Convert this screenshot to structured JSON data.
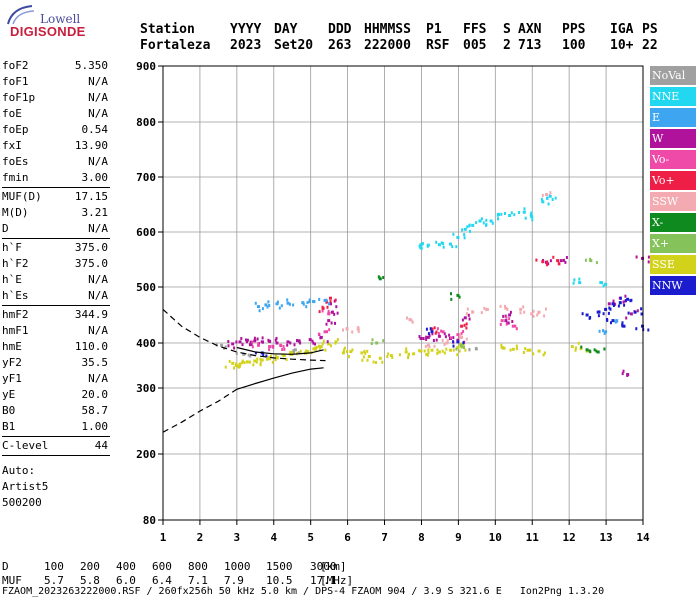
{
  "logo": {
    "top": "Lowell",
    "bottom": "DIGISONDE"
  },
  "header": {
    "labels": [
      "Station",
      "YYYY",
      "DAY",
      "DDD",
      "HHMMSS",
      "P1",
      "FFS",
      "S",
      "AXN",
      "PPS",
      "IGA",
      "PS"
    ],
    "values": [
      "Fortaleza",
      "2023",
      "Set20",
      "263",
      "222000",
      "RSF",
      "005",
      "2",
      "713",
      "100",
      "10+",
      "22"
    ]
  },
  "params": {
    "group1": [
      {
        "name": "foF2",
        "value": "5.350"
      },
      {
        "name": "foF1",
        "value": "N/A"
      },
      {
        "name": "foF1p",
        "value": "N/A"
      },
      {
        "name": "foE",
        "value": "N/A"
      },
      {
        "name": "foEp",
        "value": "0.54"
      },
      {
        "name": "fxI",
        "value": "13.90"
      },
      {
        "name": "foEs",
        "value": "N/A"
      },
      {
        "name": "fmin",
        "value": "3.00"
      }
    ],
    "group2": [
      {
        "name": "MUF(D)",
        "value": "17.15"
      },
      {
        "name": "M(D)",
        "value": "3.21"
      },
      {
        "name": "D",
        "value": "N/A"
      }
    ],
    "group3": [
      {
        "name": "h`F",
        "value": "375.0"
      },
      {
        "name": "h`F2",
        "value": "375.0"
      },
      {
        "name": "h`E",
        "value": "N/A"
      },
      {
        "name": "h`Es",
        "value": "N/A"
      }
    ],
    "group4": [
      {
        "name": "hmF2",
        "value": "344.9"
      },
      {
        "name": "hmF1",
        "value": "N/A"
      },
      {
        "name": "hmE",
        "value": "110.0"
      },
      {
        "name": "yF2",
        "value": "35.5"
      },
      {
        "name": "yF1",
        "value": "N/A"
      },
      {
        "name": "yE",
        "value": "20.0"
      },
      {
        "name": "B0",
        "value": "58.7"
      },
      {
        "name": "B1",
        "value": "1.00"
      }
    ],
    "group5": [
      {
        "name": "C-level",
        "value": "44"
      }
    ],
    "auto": [
      "Auto:",
      "Artist5",
      "500200"
    ]
  },
  "legend": [
    {
      "name": "NoVal",
      "color": "#a0a0a0"
    },
    {
      "name": "NNE",
      "color": "#22d7f0"
    },
    {
      "name": "E",
      "color": "#3ea6f0"
    },
    {
      "name": "W",
      "color": "#b0129c"
    },
    {
      "name": "Vo-",
      "color": "#f04aa8"
    },
    {
      "name": "Vo+",
      "color": "#ee1e46"
    },
    {
      "name": "SSW",
      "color": "#f3aab0"
    },
    {
      "name": "X-",
      "color": "#0e8a1e"
    },
    {
      "name": "X+",
      "color": "#86c25a"
    },
    {
      "name": "SSE",
      "color": "#d2d21a"
    },
    {
      "name": "NNW",
      "color": "#1c1ccf"
    }
  ],
  "freq_table": {
    "d_label": "D",
    "d_values": [
      "100",
      "200",
      "400",
      "600",
      "800",
      "1000",
      "1500",
      "3000"
    ],
    "d_unit": "[km]",
    "muf_label": "MUF",
    "muf_values": [
      "5.7",
      "5.8",
      "6.0",
      "6.4",
      "7.1",
      "7.9",
      "10.5",
      "17.1"
    ],
    "muf_unit": "[MHz]"
  },
  "footer": {
    "file": "FZAOM_2023263222000.RSF",
    "setup": "260fx256h 50 kHz 5.0 km",
    "station": "DPS-4 FZAOM 904",
    "location": "3.9 S 321.6 E",
    "software": "Ion2Png 1.3.20"
  },
  "chart_data": {
    "type": "scatter",
    "title": "",
    "xlabel": "",
    "ylabel": "",
    "x_ticks": [
      1,
      2,
      3,
      4,
      5,
      6,
      7,
      8,
      9,
      10,
      11,
      12,
      13,
      14
    ],
    "y_ticks": [
      80,
      200,
      300,
      400,
      500,
      600,
      700,
      800,
      900
    ],
    "xlim": [
      1,
      14
    ],
    "ylim": [
      80,
      900
    ],
    "y_scale": "nonlinear (ionogram virtual height)",
    "grid": true,
    "legend_position": "right",
    "traces": [
      {
        "name": "profile-dashed",
        "style": "dashed",
        "x": [
          1.0,
          1.5,
          2.0,
          2.5,
          3.0,
          3.5,
          4.0,
          4.5,
          5.0,
          5.4
        ],
        "y": [
          460,
          430,
          410,
          393,
          380,
          372,
          367,
          364,
          362,
          361
        ]
      },
      {
        "name": "profile-dashed-lower",
        "style": "dashed",
        "x": [
          1.0,
          1.5,
          2.0,
          2.5,
          3.0
        ],
        "y": [
          233,
          248,
          265,
          280,
          298
        ]
      },
      {
        "name": "profile-solid",
        "style": "solid",
        "x": [
          3.0,
          3.5,
          4.0,
          4.5,
          5.0,
          5.35
        ],
        "y": [
          298,
          310,
          322,
          333,
          342,
          345
        ]
      },
      {
        "name": "trace-F2",
        "style": "solid",
        "x": [
          3.0,
          3.5,
          4.0,
          4.5,
          5.0,
          5.35
        ],
        "y": [
          390,
          380,
          376,
          375,
          378,
          385
        ]
      }
    ],
    "series": [
      {
        "name": "SSE",
        "points": [
          [
            2.9,
            355
          ],
          [
            3.0,
            350
          ],
          [
            3.1,
            353
          ],
          [
            3.3,
            358
          ],
          [
            3.5,
            360
          ],
          [
            3.7,
            362
          ],
          [
            3.9,
            365
          ],
          [
            4.1,
            368
          ],
          [
            4.3,
            372
          ],
          [
            4.5,
            375
          ],
          [
            4.7,
            378
          ],
          [
            4.9,
            382
          ],
          [
            5.1,
            387
          ],
          [
            5.3,
            392
          ],
          [
            5.5,
            398
          ],
          [
            5.7,
            402
          ],
          [
            5.9,
            378
          ],
          [
            6.1,
            381
          ],
          [
            6.4,
            378
          ],
          [
            6.6,
            370
          ],
          [
            6.9,
            366
          ],
          [
            7.2,
            372
          ],
          [
            7.6,
            380
          ],
          [
            7.8,
            376
          ],
          [
            8.0,
            382
          ],
          [
            8.3,
            384
          ],
          [
            8.5,
            380
          ],
          [
            8.8,
            384
          ],
          [
            9.0,
            390
          ],
          [
            9.1,
            393
          ],
          [
            10.2,
            390
          ],
          [
            10.5,
            386
          ],
          [
            10.9,
            384
          ],
          [
            11.2,
            382
          ],
          [
            12.1,
            392
          ],
          [
            12.5,
            382
          ]
        ]
      },
      {
        "name": "W",
        "points": [
          [
            2.9,
            398
          ],
          [
            3.1,
            402
          ],
          [
            3.3,
            405
          ],
          [
            3.5,
            404
          ],
          [
            3.7,
            402
          ],
          [
            3.9,
            403
          ],
          [
            4.1,
            400
          ],
          [
            4.4,
            402
          ],
          [
            4.7,
            404
          ],
          [
            5.0,
            406
          ],
          [
            5.3,
            410
          ],
          [
            5.5,
            440
          ],
          [
            5.55,
            470
          ],
          [
            5.6,
            455
          ],
          [
            8.0,
            408
          ],
          [
            8.2,
            410
          ],
          [
            8.5,
            412
          ],
          [
            8.8,
            408
          ],
          [
            9.0,
            405
          ],
          [
            9.2,
            445
          ],
          [
            10.3,
            440
          ],
          [
            10.4,
            450
          ],
          [
            11.4,
            545
          ],
          [
            11.8,
            548
          ],
          [
            13.1,
            470
          ],
          [
            13.4,
            480
          ],
          [
            13.7,
            452
          ],
          [
            14.0,
            552
          ],
          [
            13.6,
            330
          ]
        ]
      },
      {
        "name": "Vo-",
        "points": [
          [
            3.6,
            395
          ],
          [
            3.9,
            392
          ],
          [
            4.2,
            395
          ],
          [
            5.4,
            420
          ],
          [
            5.5,
            452
          ],
          [
            8.6,
            420
          ],
          [
            9.0,
            415
          ],
          [
            10.2,
            440
          ],
          [
            10.5,
            430
          ]
        ]
      },
      {
        "name": "Vo+",
        "points": [
          [
            5.35,
            462
          ],
          [
            5.55,
            480
          ],
          [
            8.3,
            425
          ],
          [
            9.1,
            430
          ],
          [
            11.3,
            546
          ],
          [
            11.7,
            548
          ]
        ]
      },
      {
        "name": "SSW",
        "points": [
          [
            6.0,
            425
          ],
          [
            6.3,
            425
          ],
          [
            7.7,
            442
          ],
          [
            8.2,
            395
          ],
          [
            8.7,
            400
          ],
          [
            9.1,
            410
          ],
          [
            9.4,
            455
          ],
          [
            9.8,
            460
          ],
          [
            10.3,
            462
          ],
          [
            10.7,
            460
          ],
          [
            11.0,
            452
          ],
          [
            11.2,
            455
          ],
          [
            11.4,
            668
          ]
        ]
      },
      {
        "name": "E",
        "points": [
          [
            3.6,
            465
          ],
          [
            3.8,
            468
          ],
          [
            4.1,
            470
          ],
          [
            4.4,
            471
          ],
          [
            4.8,
            472
          ],
          [
            5.1,
            474
          ],
          [
            5.4,
            476
          ],
          [
            13.0,
            420
          ],
          [
            13.3,
            440
          ]
        ]
      },
      {
        "name": "NNE",
        "points": [
          [
            8.0,
            577
          ],
          [
            8.2,
            576
          ],
          [
            8.5,
            577
          ],
          [
            8.8,
            578
          ],
          [
            9.0,
            590
          ],
          [
            9.2,
            605
          ],
          [
            9.4,
            612
          ],
          [
            9.6,
            620
          ],
          [
            9.9,
            620
          ],
          [
            10.1,
            632
          ],
          [
            10.4,
            630
          ],
          [
            10.8,
            636
          ],
          [
            11.0,
            628
          ],
          [
            11.3,
            655
          ],
          [
            11.5,
            665
          ],
          [
            12.3,
            508
          ],
          [
            13.0,
            505
          ]
        ]
      },
      {
        "name": "NNW",
        "points": [
          [
            12.5,
            450
          ],
          [
            12.8,
            455
          ],
          [
            13.0,
            460
          ],
          [
            13.2,
            470
          ],
          [
            13.4,
            472
          ],
          [
            13.6,
            478
          ],
          [
            13.8,
            455
          ],
          [
            14.0,
            430
          ],
          [
            13.2,
            440
          ],
          [
            13.5,
            430
          ],
          [
            3.7,
            378
          ],
          [
            8.3,
            420
          ],
          [
            9.0,
            402
          ]
        ]
      },
      {
        "name": "X-",
        "points": [
          [
            6.9,
            515
          ],
          [
            9.0,
            485
          ],
          [
            12.5,
            385
          ],
          [
            12.8,
            380
          ]
        ]
      },
      {
        "name": "X+",
        "points": [
          [
            6.8,
            400
          ],
          [
            9.1,
            395
          ],
          [
            12.6,
            548
          ]
        ]
      },
      {
        "name": "NoVal",
        "points": [
          [
            2.6,
            395
          ],
          [
            3.2,
            375
          ],
          [
            4.6,
            385
          ],
          [
            9.5,
            387
          ]
        ]
      }
    ]
  }
}
